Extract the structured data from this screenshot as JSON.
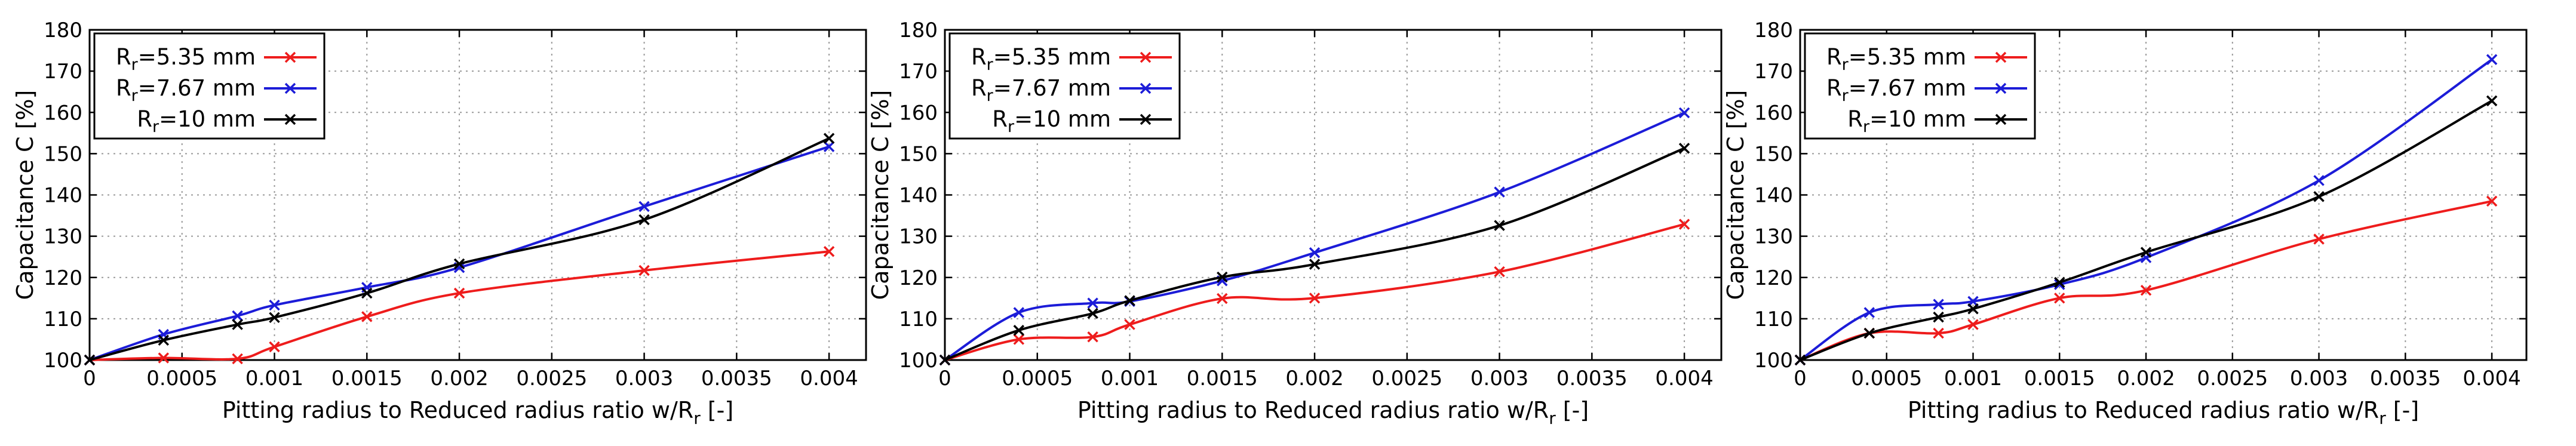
{
  "chart_data": [
    {
      "type": "line",
      "xlabel": "Pitting radius to Reduced radius ratio w/R",
      "xlabel_sub": "r",
      "xlabel_suffix": " [-]",
      "ylabel": "Capacitance C [%]",
      "xlim": [
        0,
        0.0042
      ],
      "ylim": [
        100,
        180
      ],
      "xticks": [
        0,
        0.0005,
        0.001,
        0.0015,
        0.002,
        0.0025,
        0.003,
        0.0035,
        0.004
      ],
      "xtick_labels": [
        "0",
        "0.0005",
        "0.001",
        "0.0015",
        "0.002",
        "0.0025",
        "0.003",
        "0.0035",
        "0.004"
      ],
      "yticks": [
        100,
        110,
        120,
        130,
        140,
        150,
        160,
        170,
        180
      ],
      "ytick_labels": [
        "100",
        "110",
        "120",
        "130",
        "140",
        "150",
        "160",
        "170",
        "180"
      ],
      "grid": true,
      "legend_position": "top-left",
      "series": [
        {
          "name_main": "R",
          "name_sub": "r",
          "name_rest": "=5.35 mm",
          "color": "#ee1c1c",
          "x": [
            0,
            0.0004,
            0.0008,
            0.001,
            0.0015,
            0.002,
            0.003,
            0.004
          ],
          "y": [
            100,
            100.5,
            100.3,
            103.2,
            110.5,
            116.2,
            121.7,
            126.3
          ]
        },
        {
          "name_main": "R",
          "name_sub": "r",
          "name_rest": "=7.67 mm",
          "color": "#1c1cd8",
          "x": [
            0,
            0.0004,
            0.0008,
            0.001,
            0.0015,
            0.002,
            0.003,
            0.004
          ],
          "y": [
            100,
            106.2,
            110.7,
            113.3,
            117.6,
            122.4,
            137.2,
            151.7
          ]
        },
        {
          "name_main": "R",
          "name_sub": "r",
          "name_rest": "=10 mm",
          "color": "#000000",
          "x": [
            0,
            0.0004,
            0.0008,
            0.001,
            0.0015,
            0.002,
            0.003,
            0.004
          ],
          "y": [
            100,
            104.8,
            108.6,
            110.3,
            116.2,
            123.3,
            134.0,
            153.7
          ]
        }
      ]
    },
    {
      "type": "line",
      "xlabel": "Pitting radius to Reduced radius ratio w/R",
      "xlabel_sub": "r",
      "xlabel_suffix": " [-]",
      "ylabel": "Capacitance C [%]",
      "xlim": [
        0,
        0.0042
      ],
      "ylim": [
        100,
        180
      ],
      "xticks": [
        0,
        0.0005,
        0.001,
        0.0015,
        0.002,
        0.0025,
        0.003,
        0.0035,
        0.004
      ],
      "xtick_labels": [
        "0",
        "0.0005",
        "0.001",
        "0.0015",
        "0.002",
        "0.0025",
        "0.003",
        "0.0035",
        "0.004"
      ],
      "yticks": [
        100,
        110,
        120,
        130,
        140,
        150,
        160,
        170,
        180
      ],
      "ytick_labels": [
        "100",
        "110",
        "120",
        "130",
        "140",
        "150",
        "160",
        "170",
        "180"
      ],
      "grid": true,
      "legend_position": "top-left",
      "series": [
        {
          "name_main": "R",
          "name_sub": "r",
          "name_rest": "=5.35 mm",
          "color": "#ee1c1c",
          "x": [
            0,
            0.0004,
            0.0008,
            0.001,
            0.0015,
            0.002,
            0.003,
            0.004
          ],
          "y": [
            100,
            105.0,
            105.6,
            108.6,
            114.9,
            115.0,
            121.4,
            132.9
          ]
        },
        {
          "name_main": "R",
          "name_sub": "r",
          "name_rest": "=7.67 mm",
          "color": "#1c1cd8",
          "x": [
            0,
            0.0004,
            0.0008,
            0.001,
            0.0015,
            0.002,
            0.003,
            0.004
          ],
          "y": [
            100,
            111.5,
            113.8,
            114.2,
            119.2,
            126.0,
            140.7,
            159.9
          ]
        },
        {
          "name_main": "R",
          "name_sub": "r",
          "name_rest": "=10 mm",
          "color": "#000000",
          "x": [
            0,
            0.0004,
            0.0008,
            0.001,
            0.0015,
            0.002,
            0.003,
            0.004
          ],
          "y": [
            100,
            107.2,
            111.3,
            114.4,
            120.1,
            123.2,
            132.6,
            151.3
          ]
        }
      ]
    },
    {
      "type": "line",
      "xlabel": "Pitting radius to Reduced radius ratio w/R",
      "xlabel_sub": "r",
      "xlabel_suffix": " [-]",
      "ylabel": "Capacitance C [%]",
      "xlim": [
        0,
        0.0042
      ],
      "ylim": [
        100,
        180
      ],
      "xticks": [
        0,
        0.0005,
        0.001,
        0.0015,
        0.002,
        0.0025,
        0.003,
        0.0035,
        0.004
      ],
      "xtick_labels": [
        "0",
        "0.0005",
        "0.001",
        "0.0015",
        "0.002",
        "0.0025",
        "0.003",
        "0.0035",
        "0.004"
      ],
      "yticks": [
        100,
        110,
        120,
        130,
        140,
        150,
        160,
        170,
        180
      ],
      "ytick_labels": [
        "100",
        "110",
        "120",
        "130",
        "140",
        "150",
        "160",
        "170",
        "180"
      ],
      "grid": true,
      "legend_position": "top-left",
      "series": [
        {
          "name_main": "R",
          "name_sub": "r",
          "name_rest": "=5.35 mm",
          "color": "#ee1c1c",
          "x": [
            0,
            0.0004,
            0.0008,
            0.001,
            0.0015,
            0.002,
            0.003,
            0.004
          ],
          "y": [
            100,
            106.5,
            106.5,
            108.6,
            115.0,
            116.9,
            129.3,
            138.5
          ]
        },
        {
          "name_main": "R",
          "name_sub": "r",
          "name_rest": "=7.67 mm",
          "color": "#1c1cd8",
          "x": [
            0,
            0.0004,
            0.0008,
            0.001,
            0.0015,
            0.002,
            0.003,
            0.004
          ],
          "y": [
            100,
            111.5,
            113.5,
            114.2,
            118.3,
            124.8,
            143.5,
            172.8
          ]
        },
        {
          "name_main": "R",
          "name_sub": "r",
          "name_rest": "=10 mm",
          "color": "#000000",
          "x": [
            0,
            0.0004,
            0.0008,
            0.001,
            0.0015,
            0.002,
            0.003,
            0.004
          ],
          "y": [
            100,
            106.5,
            110.4,
            112.4,
            118.8,
            126.1,
            139.6,
            162.8
          ]
        }
      ]
    }
  ]
}
